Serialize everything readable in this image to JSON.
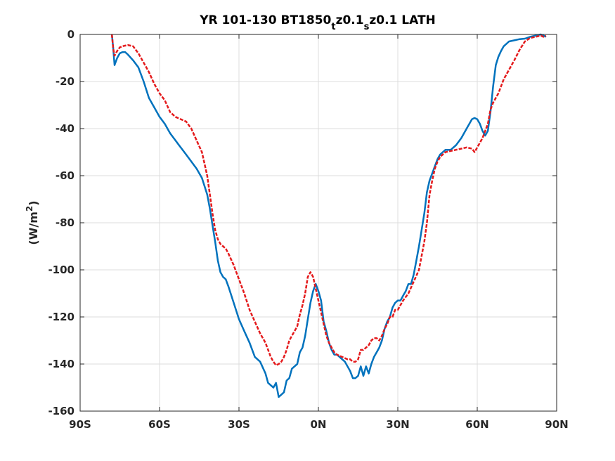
{
  "chart_data": {
    "type": "line",
    "title_main": "YR 101-130 BT1850",
    "title_parts": [
      {
        "text": "YR 101-130 BT1850",
        "sub": false
      },
      {
        "text": "t",
        "sub": true
      },
      {
        "text": "z0.1",
        "sub": false
      },
      {
        "text": "s",
        "sub": true
      },
      {
        "text": "z0.1 LATH",
        "sub": false
      }
    ],
    "ylabel_main": "(W/m",
    "ylabel_sup": "2",
    "ylabel_end": ")",
    "xlim": [
      -90,
      90
    ],
    "ylim": [
      -160,
      0
    ],
    "xticks": [
      -90,
      -60,
      -30,
      0,
      30,
      60,
      90
    ],
    "xtick_labels": [
      "90S",
      "60S",
      "30S",
      "0N",
      "30N",
      "60N",
      "90N"
    ],
    "yticks": [
      0,
      -20,
      -40,
      -60,
      -80,
      -100,
      -120,
      -140,
      -160
    ],
    "ytick_labels": [
      "0",
      "-20",
      "-40",
      "-60",
      "-80",
      "-100",
      "-120",
      "-140",
      "-160"
    ],
    "grid": true,
    "series": [
      {
        "color": "#0072BD",
        "dash": "solid",
        "x": [
          -78,
          -77.5,
          -77,
          -76,
          -75,
          -74,
          -73,
          -72,
          -70,
          -68,
          -66,
          -64,
          -62,
          -60,
          -58,
          -56,
          -54,
          -52,
          -50,
          -48,
          -46,
          -44,
          -42,
          -41,
          -40,
          -39,
          -38,
          -37,
          -36,
          -35,
          -34,
          -32,
          -30,
          -28,
          -26,
          -24,
          -22,
          -20,
          -19,
          -18,
          -17,
          -16,
          -15,
          -14,
          -13,
          -12,
          -11,
          -10,
          -9,
          -8,
          -7,
          -6,
          -5,
          -4,
          -3,
          -2,
          -1,
          0,
          1,
          2,
          3,
          4,
          5,
          6,
          7,
          8,
          9,
          10,
          11,
          12,
          13,
          14,
          15,
          16,
          17,
          18,
          19,
          20,
          21,
          22,
          23,
          24,
          25,
          26,
          27,
          28,
          29,
          30,
          31,
          32,
          33,
          34,
          35,
          36,
          37,
          38,
          39,
          40,
          41,
          42,
          43,
          44,
          45,
          46,
          47,
          48,
          49,
          50,
          52,
          54,
          56,
          58,
          59,
          60,
          61,
          62,
          63,
          64,
          65,
          66,
          67,
          68,
          69,
          70,
          72,
          74,
          76,
          78,
          80,
          82,
          84,
          85,
          86
        ],
        "y": [
          0,
          -6,
          -13,
          -10,
          -8,
          -7.5,
          -7.5,
          -8.5,
          -11,
          -14,
          -20,
          -27,
          -31,
          -35,
          -38,
          -42,
          -45,
          -48,
          -51,
          -54,
          -57,
          -61,
          -68,
          -74,
          -81,
          -88,
          -96,
          -101,
          -103,
          -104,
          -107,
          -114,
          -121,
          -126,
          -131,
          -137,
          -139,
          -144,
          -148,
          -149,
          -150,
          -148,
          -154,
          -153,
          -152,
          -147,
          -146,
          -142,
          -141,
          -140,
          -135,
          -133,
          -128,
          -121,
          -114,
          -109,
          -106,
          -109,
          -113,
          -122,
          -126,
          -131,
          -134,
          -136,
          -136,
          -137,
          -138,
          -139,
          -141,
          -143,
          -146,
          -146,
          -145,
          -141,
          -145,
          -141,
          -144,
          -140,
          -137,
          -135,
          -133,
          -130,
          -125,
          -122,
          -120,
          -116,
          -114,
          -113,
          -113,
          -111,
          -109,
          -106,
          -106,
          -102,
          -96,
          -90,
          -83,
          -76,
          -67,
          -62,
          -59,
          -56,
          -53,
          -51,
          -50,
          -49,
          -49,
          -49,
          -47,
          -44,
          -40,
          -36,
          -35.5,
          -36,
          -38,
          -41,
          -43,
          -41,
          -33,
          -22,
          -13,
          -9.5,
          -7,
          -5,
          -3,
          -2.5,
          -2,
          -1.8,
          -1,
          -0.5,
          0,
          -0.5,
          -1
        ]
      },
      {
        "color": "#E41A1C",
        "dash": "dashed",
        "x": [
          -78,
          -77.5,
          -77,
          -76,
          -75,
          -74,
          -72,
          -70,
          -68,
          -66,
          -64,
          -62,
          -60,
          -58,
          -56,
          -54,
          -52,
          -50,
          -48,
          -46,
          -44,
          -42,
          -41,
          -40,
          -39,
          -38,
          -37,
          -36,
          -35,
          -34,
          -32,
          -30,
          -28,
          -26,
          -24,
          -22,
          -20,
          -18,
          -17,
          -16,
          -15,
          -14,
          -13,
          -12,
          -11,
          -10,
          -9,
          -8,
          -7,
          -6,
          -5,
          -4,
          -3,
          -2,
          -1,
          0,
          1,
          2,
          3,
          4,
          5,
          6,
          7,
          8,
          9,
          10,
          11,
          12,
          13,
          14,
          15,
          16,
          17,
          18,
          19,
          20,
          21,
          22,
          23,
          24,
          25,
          26,
          27,
          28,
          29,
          30,
          32,
          34,
          36,
          38,
          40,
          41,
          42,
          43,
          44,
          45,
          46,
          47,
          48,
          50,
          52,
          54,
          56,
          58,
          59,
          60,
          61,
          62,
          64,
          65,
          66,
          68,
          70,
          72,
          74,
          76,
          78,
          80,
          82,
          84,
          85,
          86
        ],
        "y": [
          0,
          -6,
          -9,
          -7,
          -5.5,
          -5,
          -4.5,
          -5,
          -8,
          -12,
          -16,
          -21,
          -25,
          -28,
          -33,
          -35,
          -36,
          -37,
          -40,
          -45,
          -50,
          -60,
          -68,
          -76,
          -83,
          -87,
          -89,
          -90,
          -91,
          -93,
          -98,
          -104,
          -110,
          -117,
          -122,
          -127,
          -131,
          -137,
          -139,
          -140.5,
          -140,
          -139,
          -137,
          -134,
          -130,
          -128,
          -126,
          -124,
          -119,
          -115,
          -110,
          -103,
          -101,
          -103,
          -108,
          -113,
          -118,
          -123,
          -128,
          -131,
          -133,
          -135,
          -136,
          -136.5,
          -137,
          -137.5,
          -138,
          -138,
          -139,
          -139,
          -138,
          -134,
          -134,
          -133,
          -132,
          -130,
          -129,
          -129,
          -130,
          -128,
          -125,
          -123,
          -120,
          -120,
          -117,
          -117,
          -113,
          -110,
          -105,
          -100,
          -88,
          -80,
          -68,
          -62,
          -57,
          -54,
          -52,
          -51,
          -50,
          -49.5,
          -49,
          -48.5,
          -48,
          -48.5,
          -50,
          -48,
          -46,
          -44,
          -38,
          -32,
          -29,
          -25,
          -19,
          -15,
          -11,
          -6.5,
          -3,
          -1.5,
          -1,
          -0.5,
          -1,
          -0.5
        ]
      }
    ]
  }
}
